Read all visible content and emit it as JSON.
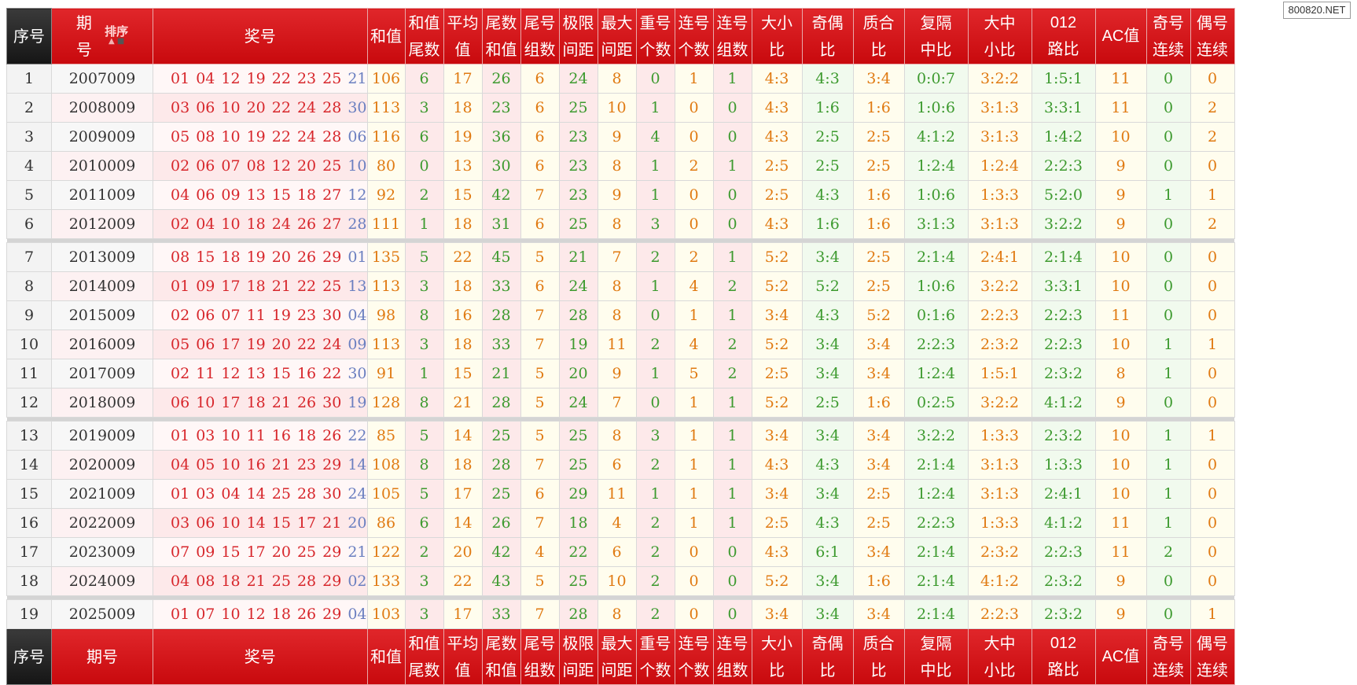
{
  "watermark": "800820.NET",
  "header": {
    "seq": "序号",
    "issue_top": "期",
    "issue_bottom": "号",
    "sort_label": "排序",
    "sort_up_icon": "▲",
    "sort_down_icon": "■",
    "numbers": "奖号",
    "columns": [
      {
        "l1": "和值",
        "l2": ""
      },
      {
        "l1": "和值",
        "l2": "尾数"
      },
      {
        "l1": "平均",
        "l2": "值"
      },
      {
        "l1": "尾数",
        "l2": "和值"
      },
      {
        "l1": "尾号",
        "l2": "组数"
      },
      {
        "l1": "极限",
        "l2": "间距"
      },
      {
        "l1": "最大",
        "l2": "间距"
      },
      {
        "l1": "重号",
        "l2": "个数"
      },
      {
        "l1": "连号",
        "l2": "个数"
      },
      {
        "l1": "连号",
        "l2": "组数"
      },
      {
        "l1": "大小",
        "l2": "比"
      },
      {
        "l1": "奇偶",
        "l2": "比"
      },
      {
        "l1": "质合",
        "l2": "比"
      },
      {
        "l1": "复隔",
        "l2": "中比"
      },
      {
        "l1": "大中",
        "l2": "小比"
      },
      {
        "l1": "012",
        "l2": "路比"
      },
      {
        "l1": "AC值",
        "l2": ""
      },
      {
        "l1": "奇号",
        "l2": "连续"
      },
      {
        "l1": "偶号",
        "l2": "连续"
      }
    ]
  },
  "footer": {
    "seq": "序号",
    "issue": "期号",
    "numbers": "奖号"
  },
  "rows": [
    {
      "seq": "1",
      "issue": "2007009",
      "reds": [
        "01",
        "04",
        "12",
        "19",
        "22",
        "23",
        "25"
      ],
      "blue": "21",
      "vals": [
        "106",
        "6",
        "17",
        "26",
        "6",
        "24",
        "8",
        "0",
        "1",
        "1",
        "4:3",
        "4:3",
        "3:4",
        "0:0:7",
        "3:2:2",
        "1:5:1",
        "11",
        "0",
        "0"
      ]
    },
    {
      "seq": "2",
      "issue": "2008009",
      "reds": [
        "03",
        "06",
        "10",
        "20",
        "22",
        "24",
        "28"
      ],
      "blue": "30",
      "vals": [
        "113",
        "3",
        "18",
        "23",
        "6",
        "25",
        "10",
        "1",
        "0",
        "0",
        "4:3",
        "1:6",
        "1:6",
        "1:0:6",
        "3:1:3",
        "3:3:1",
        "11",
        "0",
        "2"
      ]
    },
    {
      "seq": "3",
      "issue": "2009009",
      "reds": [
        "05",
        "08",
        "10",
        "19",
        "22",
        "24",
        "28"
      ],
      "blue": "06",
      "vals": [
        "116",
        "6",
        "19",
        "36",
        "6",
        "23",
        "9",
        "4",
        "0",
        "0",
        "4:3",
        "2:5",
        "2:5",
        "4:1:2",
        "3:1:3",
        "1:4:2",
        "10",
        "0",
        "2"
      ]
    },
    {
      "seq": "4",
      "issue": "2010009",
      "reds": [
        "02",
        "06",
        "07",
        "08",
        "12",
        "20",
        "25"
      ],
      "blue": "10",
      "vals": [
        "80",
        "0",
        "13",
        "30",
        "6",
        "23",
        "8",
        "1",
        "2",
        "1",
        "2:5",
        "2:5",
        "2:5",
        "1:2:4",
        "1:2:4",
        "2:2:3",
        "9",
        "0",
        "0"
      ]
    },
    {
      "seq": "5",
      "issue": "2011009",
      "reds": [
        "04",
        "06",
        "09",
        "13",
        "15",
        "18",
        "27"
      ],
      "blue": "12",
      "vals": [
        "92",
        "2",
        "15",
        "42",
        "7",
        "23",
        "9",
        "1",
        "0",
        "0",
        "2:5",
        "4:3",
        "1:6",
        "1:0:6",
        "1:3:3",
        "5:2:0",
        "9",
        "1",
        "1"
      ]
    },
    {
      "seq": "6",
      "issue": "2012009",
      "reds": [
        "02",
        "04",
        "10",
        "18",
        "24",
        "26",
        "27"
      ],
      "blue": "28",
      "vals": [
        "111",
        "1",
        "18",
        "31",
        "6",
        "25",
        "8",
        "3",
        "0",
        "0",
        "4:3",
        "1:6",
        "1:6",
        "3:1:3",
        "3:1:3",
        "3:2:2",
        "9",
        "0",
        "2"
      ]
    },
    {
      "seq": "7",
      "issue": "2013009",
      "reds": [
        "08",
        "15",
        "18",
        "19",
        "20",
        "26",
        "29"
      ],
      "blue": "01",
      "vals": [
        "135",
        "5",
        "22",
        "45",
        "5",
        "21",
        "7",
        "2",
        "2",
        "1",
        "5:2",
        "3:4",
        "2:5",
        "2:1:4",
        "2:4:1",
        "2:1:4",
        "10",
        "0",
        "0"
      ]
    },
    {
      "seq": "8",
      "issue": "2014009",
      "reds": [
        "01",
        "09",
        "17",
        "18",
        "21",
        "22",
        "25"
      ],
      "blue": "13",
      "vals": [
        "113",
        "3",
        "18",
        "33",
        "6",
        "24",
        "8",
        "1",
        "4",
        "2",
        "5:2",
        "5:2",
        "2:5",
        "1:0:6",
        "3:2:2",
        "3:3:1",
        "10",
        "0",
        "0"
      ]
    },
    {
      "seq": "9",
      "issue": "2015009",
      "reds": [
        "02",
        "06",
        "07",
        "11",
        "19",
        "23",
        "30"
      ],
      "blue": "04",
      "vals": [
        "98",
        "8",
        "16",
        "28",
        "7",
        "28",
        "8",
        "0",
        "1",
        "1",
        "3:4",
        "4:3",
        "5:2",
        "0:1:6",
        "2:2:3",
        "2:2:3",
        "11",
        "0",
        "0"
      ]
    },
    {
      "seq": "10",
      "issue": "2016009",
      "reds": [
        "05",
        "06",
        "17",
        "19",
        "20",
        "22",
        "24"
      ],
      "blue": "09",
      "vals": [
        "113",
        "3",
        "18",
        "33",
        "7",
        "19",
        "11",
        "2",
        "4",
        "2",
        "5:2",
        "3:4",
        "3:4",
        "2:2:3",
        "2:3:2",
        "2:2:3",
        "10",
        "1",
        "1"
      ]
    },
    {
      "seq": "11",
      "issue": "2017009",
      "reds": [
        "02",
        "11",
        "12",
        "13",
        "15",
        "16",
        "22"
      ],
      "blue": "30",
      "vals": [
        "91",
        "1",
        "15",
        "21",
        "5",
        "20",
        "9",
        "1",
        "5",
        "2",
        "2:5",
        "3:4",
        "3:4",
        "1:2:4",
        "1:5:1",
        "2:3:2",
        "8",
        "1",
        "0"
      ]
    },
    {
      "seq": "12",
      "issue": "2018009",
      "reds": [
        "06",
        "10",
        "17",
        "18",
        "21",
        "26",
        "30"
      ],
      "blue": "19",
      "vals": [
        "128",
        "8",
        "21",
        "28",
        "5",
        "24",
        "7",
        "0",
        "1",
        "1",
        "5:2",
        "2:5",
        "1:6",
        "0:2:5",
        "3:2:2",
        "4:1:2",
        "9",
        "0",
        "0"
      ]
    },
    {
      "seq": "13",
      "issue": "2019009",
      "reds": [
        "01",
        "03",
        "10",
        "11",
        "16",
        "18",
        "26"
      ],
      "blue": "22",
      "vals": [
        "85",
        "5",
        "14",
        "25",
        "5",
        "25",
        "8",
        "3",
        "1",
        "1",
        "3:4",
        "3:4",
        "3:4",
        "3:2:2",
        "1:3:3",
        "2:3:2",
        "10",
        "1",
        "1"
      ]
    },
    {
      "seq": "14",
      "issue": "2020009",
      "reds": [
        "04",
        "05",
        "10",
        "16",
        "21",
        "23",
        "29"
      ],
      "blue": "14",
      "vals": [
        "108",
        "8",
        "18",
        "28",
        "7",
        "25",
        "6",
        "2",
        "1",
        "1",
        "4:3",
        "4:3",
        "3:4",
        "2:1:4",
        "3:1:3",
        "1:3:3",
        "10",
        "1",
        "0"
      ]
    },
    {
      "seq": "15",
      "issue": "2021009",
      "reds": [
        "01",
        "03",
        "04",
        "14",
        "25",
        "28",
        "30"
      ],
      "blue": "24",
      "vals": [
        "105",
        "5",
        "17",
        "25",
        "6",
        "29",
        "11",
        "1",
        "1",
        "1",
        "3:4",
        "3:4",
        "2:5",
        "1:2:4",
        "3:1:3",
        "2:4:1",
        "10",
        "1",
        "0"
      ]
    },
    {
      "seq": "16",
      "issue": "2022009",
      "reds": [
        "03",
        "06",
        "10",
        "14",
        "15",
        "17",
        "21"
      ],
      "blue": "20",
      "vals": [
        "86",
        "6",
        "14",
        "26",
        "7",
        "18",
        "4",
        "2",
        "1",
        "1",
        "2:5",
        "4:3",
        "2:5",
        "2:2:3",
        "1:3:3",
        "4:1:2",
        "11",
        "1",
        "0"
      ]
    },
    {
      "seq": "17",
      "issue": "2023009",
      "reds": [
        "07",
        "09",
        "15",
        "17",
        "20",
        "25",
        "29"
      ],
      "blue": "21",
      "vals": [
        "122",
        "2",
        "20",
        "42",
        "4",
        "22",
        "6",
        "2",
        "0",
        "0",
        "4:3",
        "6:1",
        "3:4",
        "2:1:4",
        "2:3:2",
        "2:2:3",
        "11",
        "2",
        "0"
      ]
    },
    {
      "seq": "18",
      "issue": "2024009",
      "reds": [
        "04",
        "08",
        "18",
        "21",
        "25",
        "28",
        "29"
      ],
      "blue": "02",
      "vals": [
        "133",
        "3",
        "22",
        "43",
        "5",
        "25",
        "10",
        "2",
        "0",
        "0",
        "5:2",
        "3:4",
        "1:6",
        "2:1:4",
        "4:1:2",
        "2:3:2",
        "9",
        "0",
        "0"
      ]
    },
    {
      "seq": "19",
      "issue": "2025009",
      "reds": [
        "01",
        "07",
        "10",
        "12",
        "18",
        "26",
        "29"
      ],
      "blue": "04",
      "vals": [
        "103",
        "3",
        "17",
        "33",
        "7",
        "28",
        "8",
        "2",
        "0",
        "0",
        "3:4",
        "3:4",
        "3:4",
        "2:1:4",
        "2:2:3",
        "2:3:2",
        "9",
        "0",
        "1"
      ]
    }
  ]
}
